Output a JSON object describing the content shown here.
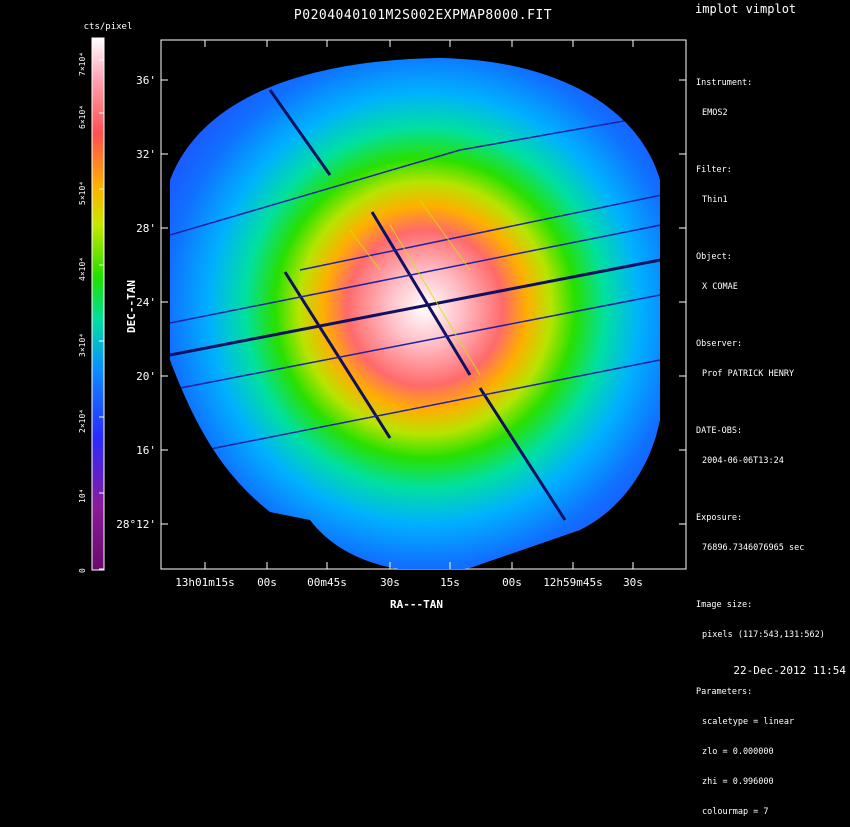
{
  "title": "P0204040101M2S002EXPMAP8000.FIT",
  "program": "implot vimplot",
  "colorbar": {
    "label": "cts/pixel",
    "ticks": [
      "0",
      "10⁴",
      "2×10⁴",
      "3×10⁴",
      "4×10⁴",
      "5×10⁴",
      "6×10⁴",
      "7×10⁴"
    ]
  },
  "axes": {
    "xlabel": "RA---TAN",
    "ylabel": "DEC--TAN",
    "yticks": [
      "36'",
      "32'",
      "28'",
      "24'",
      "20'",
      "16'",
      "28°12'"
    ],
    "xticks": [
      "13h01m15s",
      "00s",
      "00m45s",
      "30s",
      "15s",
      "00s",
      "12h59m45s",
      "30s"
    ]
  },
  "info": [
    {
      "key": "Instrument:",
      "value": "EMOS2"
    },
    {
      "key": "Filter:",
      "value": "Thin1"
    },
    {
      "key": "Object:",
      "value": "X COMAE"
    },
    {
      "key": "Observer:",
      "value": "Prof PATRICK HENRY"
    },
    {
      "key": "DATE-OBS:",
      "value": "2004-06-06T13:24"
    },
    {
      "key": "Exposure:",
      "value": "76896.7346076965 sec"
    },
    {
      "key": "Image size:",
      "value": "pixels (117:543,131:562)"
    },
    {
      "key": "Parameters:",
      "values": [
        "scaletype = linear",
        "zlo = 0.000000",
        "zhi = 0.996000",
        "colourmap = 7"
      ]
    }
  ],
  "timestamp": "22-Dec-2012 11:54"
}
